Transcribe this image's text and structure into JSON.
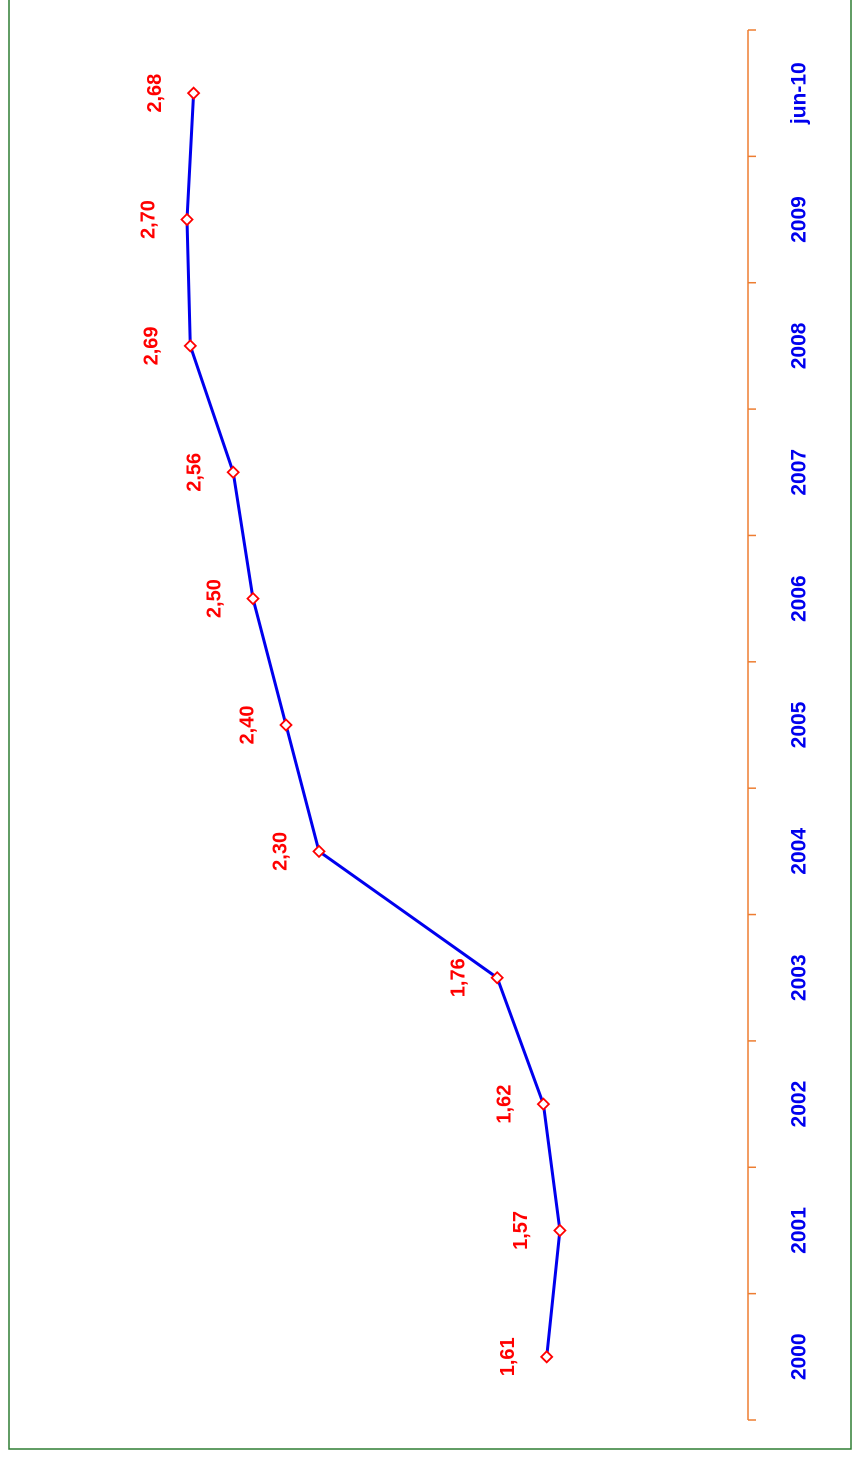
{
  "chart_data": {
    "type": "line",
    "categories": [
      "2000",
      "2001",
      "2002",
      "2003",
      "2004",
      "2005",
      "2006",
      "2007",
      "2008",
      "2009",
      "jun-10"
    ],
    "series": [
      {
        "color": "#0000ee",
        "values": [
          1.61,
          1.57,
          1.62,
          1.76,
          2.3,
          2.4,
          2.5,
          2.56,
          2.69,
          2.7,
          2.68
        ],
        "value_labels": [
          "1,61",
          "1,57",
          "1,62",
          "1,76",
          "2,30",
          "2,40",
          "2,50",
          "2,56",
          "2,69",
          "2,70",
          "2,68"
        ]
      }
    ],
    "ylim": [
      1,
      3.2
    ],
    "marker_color": "#ff0000",
    "label_color": "#ff0000",
    "category_color": "#0000ee",
    "axis_color": "#ed7d31"
  }
}
